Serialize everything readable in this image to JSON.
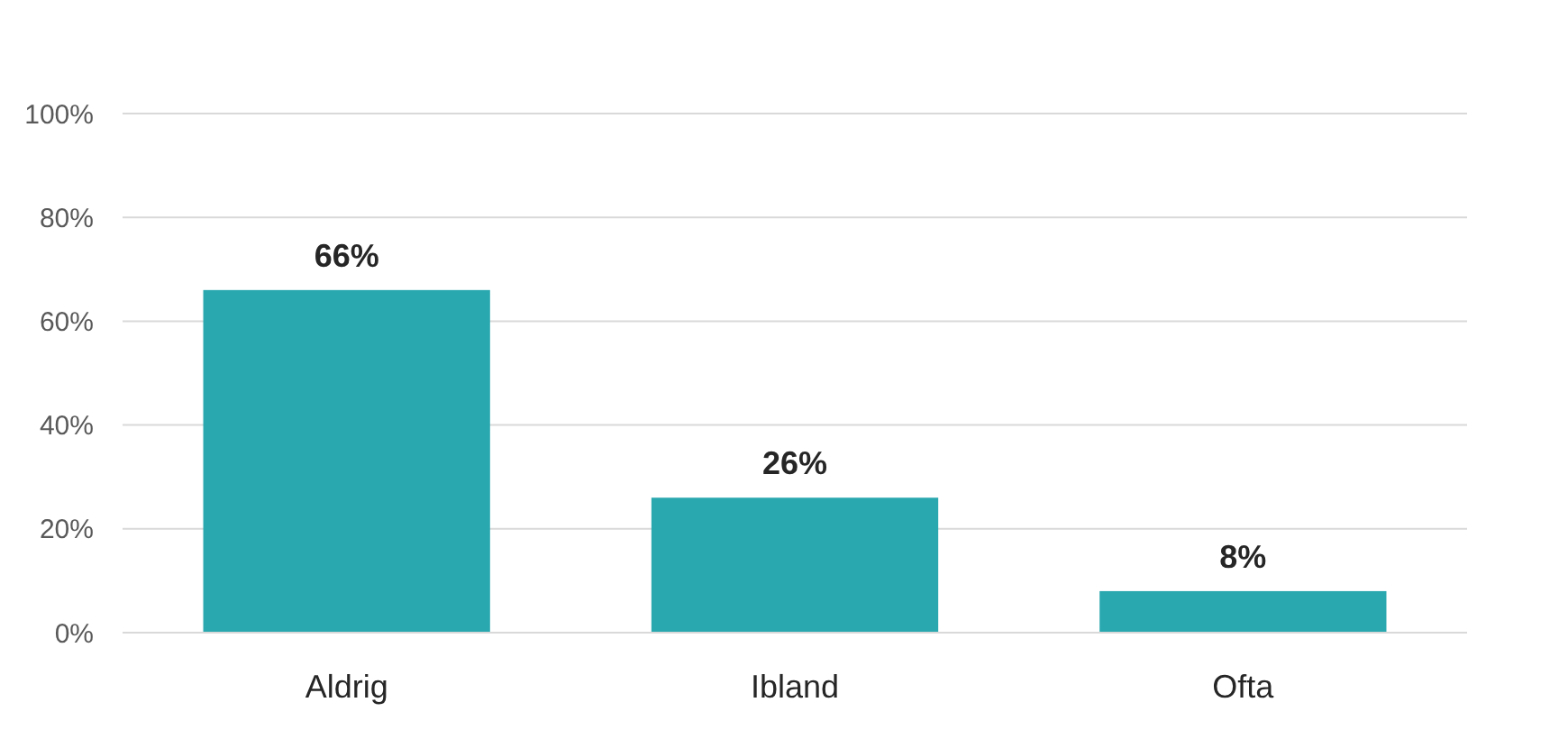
{
  "chart_data": {
    "type": "bar",
    "categories": [
      "Aldrig",
      "Ibland",
      "Ofta"
    ],
    "values": [
      66,
      26,
      8
    ],
    "color": "#2aa8b0",
    "value_labels": [
      "66%",
      "26%",
      "8%"
    ],
    "ylim": [
      0,
      100
    ],
    "yticks": [
      {
        "value": 0,
        "label": "0%"
      },
      {
        "value": 20,
        "label": "20%"
      },
      {
        "value": 40,
        "label": "40%"
      },
      {
        "value": 60,
        "label": "60%"
      },
      {
        "value": 80,
        "label": "80%"
      },
      {
        "value": 100,
        "label": "100%"
      }
    ],
    "grid": "y"
  }
}
